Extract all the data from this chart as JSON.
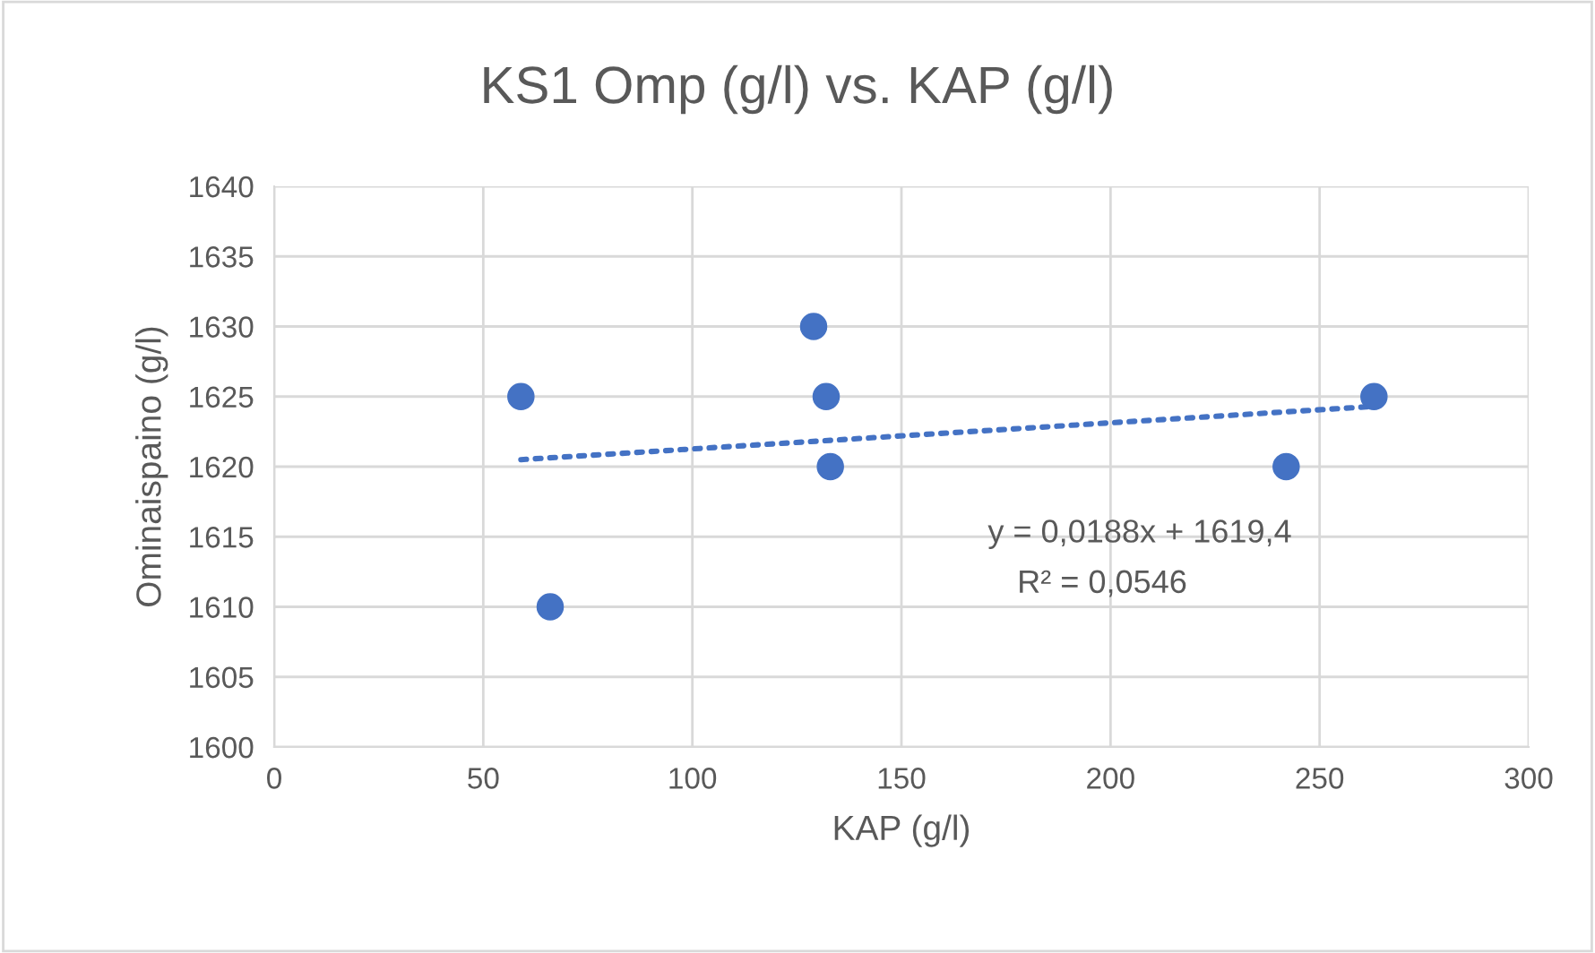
{
  "chart_data": {
    "type": "scatter",
    "title": "KS1 Omp (g/l) vs. KAP (g/l)",
    "xlabel": "KAP (g/l)",
    "ylabel": "Ominaispaino (g/l)",
    "series": [
      {
        "color": "#4472c4",
        "marker": "circle",
        "x": [
          59,
          66,
          129,
          132,
          133,
          242,
          263
        ],
        "values": [
          1625,
          1610,
          1630,
          1625,
          1620,
          1620,
          1625
        ]
      },
      {
        "type": "line",
        "color": "#4472c4",
        "line_style": "dotted",
        "marker": "none",
        "x": [
          59,
          263
        ],
        "values": [
          1620.5,
          1624.3
        ]
      }
    ],
    "annotations": [
      "y = 0,0188x + 1619,4",
      "R² = 0,0546"
    ],
    "xlim": [
      0,
      300
    ],
    "xticks": [
      0,
      50,
      100,
      150,
      200,
      250,
      300
    ],
    "ylim": [
      1600,
      1640
    ],
    "yticks": [
      1600,
      1605,
      1610,
      1615,
      1620,
      1625,
      1630,
      1635,
      1640
    ],
    "grid": true,
    "legend": false
  }
}
